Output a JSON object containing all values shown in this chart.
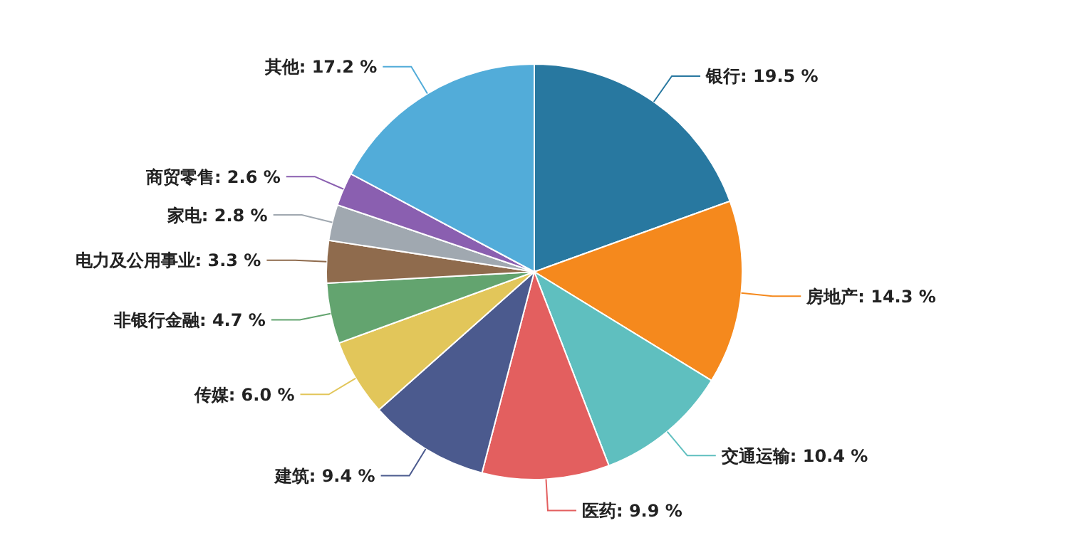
{
  "chart_data": {
    "type": "pie",
    "categories": [
      "银行",
      "房地产",
      "交通运输",
      "医药",
      "建筑",
      "传媒",
      "非银行金融",
      "电力及公用事业",
      "家电",
      "商贸零售",
      "其他"
    ],
    "values": [
      19.5,
      14.3,
      10.4,
      9.9,
      9.4,
      6.0,
      4.7,
      3.3,
      2.8,
      2.6,
      17.2
    ],
    "colors": [
      "#2878a0",
      "#f5891d",
      "#5fbfbf",
      "#e35f5f",
      "#4b5a8e",
      "#e2c65a",
      "#63a46f",
      "#8f6b4d",
      "#a0a8b0",
      "#8a5fb0",
      "#52acd9"
    ],
    "value_labels": [
      "19.5 %",
      "14.3 %",
      "10.4 %",
      "9.9 %",
      "9.4 %",
      "6.0 %",
      "4.7 %",
      "3.3 %",
      "2.8 %",
      "2.6 %",
      "17.2 %"
    ]
  }
}
